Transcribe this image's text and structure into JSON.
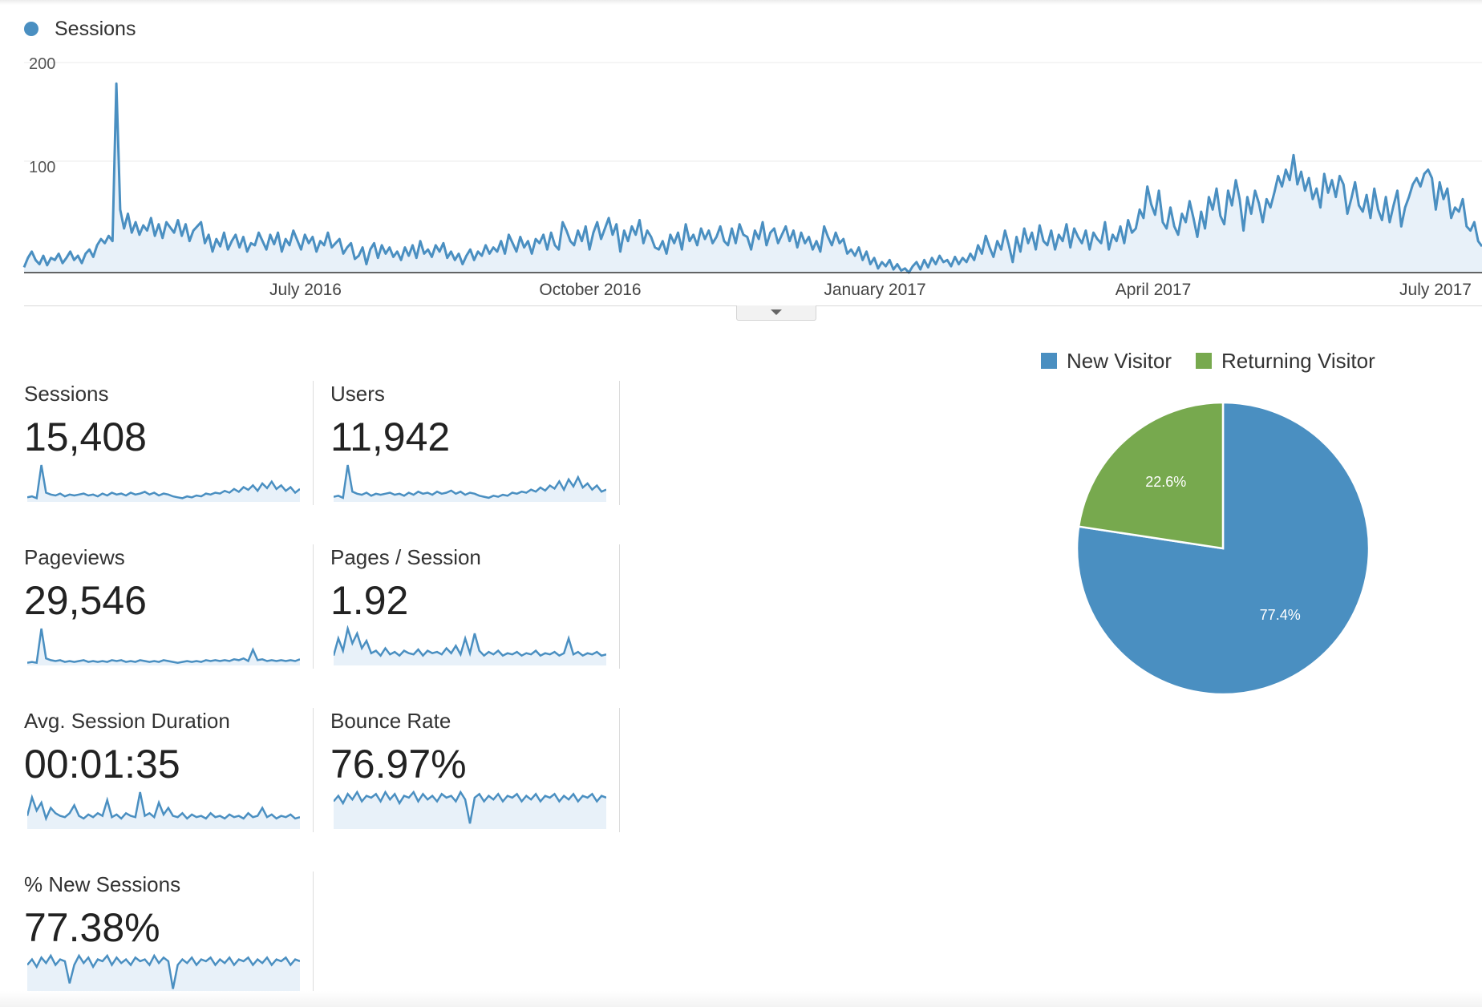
{
  "colors": {
    "sessions": "#4a8fc1",
    "new_visitor": "#4a8fc1",
    "returning_visitor": "#77a94e",
    "area_fill": "#e8f1f9"
  },
  "chart_data": [
    {
      "type": "line",
      "legend": "Sessions",
      "ylim": [
        0,
        200
      ],
      "y_ticks": [
        "200",
        "100"
      ],
      "x_tick_labels": [
        "July 2016",
        "October 2016",
        "January 2017",
        "April 2017",
        "July 2017"
      ],
      "series": [
        {
          "name": "Sessions",
          "values": [
            5,
            14,
            20,
            12,
            8,
            16,
            7,
            14,
            12,
            18,
            9,
            14,
            20,
            12,
            16,
            9,
            18,
            22,
            15,
            26,
            32,
            28,
            35,
            30,
            180,
            60,
            42,
            56,
            38,
            48,
            36,
            45,
            40,
            52,
            35,
            46,
            33,
            48,
            43,
            38,
            50,
            35,
            46,
            30,
            40,
            44,
            48,
            28,
            36,
            20,
            32,
            25,
            38,
            22,
            30,
            36,
            24,
            34,
            20,
            28,
            26,
            38,
            30,
            22,
            36,
            27,
            38,
            20,
            32,
            26,
            40,
            31,
            22,
            36,
            28,
            34,
            20,
            30,
            26,
            38,
            24,
            28,
            32,
            18,
            24,
            28,
            13,
            16,
            24,
            8,
            22,
            28,
            14,
            26,
            18,
            24,
            15,
            20,
            12,
            24,
            16,
            26,
            14,
            30,
            18,
            22,
            15,
            26,
            20,
            28,
            14,
            20,
            12,
            18,
            8,
            16,
            22,
            12,
            20,
            16,
            26,
            18,
            24,
            20,
            30,
            18,
            36,
            28,
            20,
            34,
            24,
            30,
            18,
            32,
            28,
            36,
            22,
            38,
            26,
            22,
            48,
            40,
            30,
            26,
            40,
            30,
            44,
            22,
            38,
            48,
            32,
            42,
            52,
            36,
            46,
            20,
            40,
            30,
            44,
            36,
            50,
            28,
            40,
            34,
            24,
            22,
            30,
            18,
            36,
            28,
            38,
            22,
            46,
            30,
            36,
            26,
            42,
            32,
            40,
            28,
            34,
            44,
            30,
            26,
            42,
            28,
            46,
            36,
            34,
            22,
            40,
            32,
            48,
            26,
            38,
            42,
            28,
            36,
            44,
            30,
            40,
            24,
            38,
            28,
            34,
            22,
            30,
            20,
            44,
            34,
            26,
            38,
            28,
            32,
            18,
            22,
            16,
            24,
            12,
            20,
            8,
            14,
            4,
            10,
            6,
            12,
            3,
            8,
            2,
            4,
            0,
            6,
            10,
            3,
            12,
            5,
            14,
            8,
            16,
            10,
            12,
            6,
            15,
            8,
            14,
            10,
            18,
            12,
            26,
            18,
            35,
            24,
            15,
            30,
            22,
            40,
            26,
            10,
            34,
            20,
            42,
            28,
            38,
            22,
            45,
            30,
            26,
            40,
            22,
            36,
            30,
            46,
            24,
            42,
            34,
            28,
            40,
            22,
            38,
            32,
            28,
            48,
            22,
            36,
            30,
            44,
            28,
            50,
            38,
            42,
            60,
            52,
            82,
            65,
            55,
            78,
            48,
            42,
            62,
            44,
            36,
            56,
            48,
            68,
            52,
            34,
            58,
            42,
            72,
            60,
            80,
            54,
            46,
            78,
            64,
            88,
            70,
            40,
            72,
            56,
            78,
            66,
            48,
            70,
            62,
            76,
            92,
            82,
            98,
            88,
            112,
            84,
            96,
            78,
            90,
            70,
            80,
            62,
            94,
            76,
            88,
            72,
            92,
            84,
            56,
            70,
            86,
            64,
            58,
            74,
            52,
            80,
            60,
            50,
            72,
            48,
            64,
            78,
            44,
            62,
            72,
            84,
            90,
            82,
            94,
            98,
            90,
            60,
            86,
            70,
            80,
            52,
            62,
            58,
            70,
            44,
            40,
            48,
            30,
            25
          ]
        }
      ]
    },
    {
      "type": "pie",
      "legend_entries": [
        "New Visitor",
        "Returning Visitor"
      ],
      "slices": [
        {
          "name": "New Visitor",
          "value": 77.4,
          "label": "77.4%"
        },
        {
          "name": "Returning Visitor",
          "value": 22.6,
          "label": "22.6%"
        }
      ]
    }
  ],
  "metrics": [
    {
      "label": "Sessions",
      "value": "15,408",
      "spark": [
        5,
        6,
        4,
        40,
        10,
        8,
        7,
        9,
        6,
        8,
        7,
        8,
        9,
        7,
        8,
        6,
        9,
        7,
        10,
        8,
        9,
        7,
        10,
        8,
        9,
        11,
        8,
        10,
        7,
        9,
        8,
        6,
        5,
        4,
        6,
        5,
        7,
        6,
        9,
        8,
        10,
        9,
        12,
        10,
        14,
        11,
        16,
        13,
        18,
        12,
        20,
        15,
        22,
        14,
        18,
        12,
        16,
        10,
        14
      ]
    },
    {
      "label": "Users",
      "value": "11,942",
      "spark": [
        5,
        6,
        4,
        36,
        10,
        8,
        7,
        9,
        6,
        8,
        7,
        8,
        9,
        7,
        8,
        6,
        9,
        7,
        10,
        8,
        9,
        7,
        10,
        8,
        9,
        11,
        8,
        10,
        7,
        9,
        8,
        6,
        5,
        4,
        6,
        5,
        7,
        6,
        9,
        8,
        10,
        9,
        12,
        10,
        14,
        11,
        16,
        13,
        20,
        12,
        22,
        15,
        24,
        14,
        18,
        12,
        16,
        10,
        12
      ]
    },
    {
      "label": "Pageviews",
      "value": "29,546",
      "spark": [
        3,
        4,
        3,
        42,
        8,
        6,
        5,
        6,
        4,
        5,
        4,
        5,
        6,
        4,
        5,
        4,
        5,
        4,
        6,
        5,
        6,
        4,
        5,
        4,
        6,
        5,
        4,
        5,
        4,
        6,
        5,
        4,
        3,
        4,
        5,
        4,
        5,
        4,
        6,
        5,
        6,
        5,
        6,
        5,
        7,
        6,
        8,
        5,
        18,
        6,
        7,
        5,
        6,
        5,
        6,
        5,
        6,
        5,
        7
      ]
    },
    {
      "label": "Pages / Session",
      "value": "1.92",
      "spark": [
        8,
        22,
        12,
        30,
        18,
        26,
        14,
        20,
        10,
        12,
        8,
        14,
        9,
        11,
        8,
        12,
        10,
        9,
        13,
        8,
        12,
        10,
        11,
        9,
        14,
        10,
        16,
        9,
        22,
        10,
        26,
        12,
        8,
        11,
        9,
        12,
        8,
        10,
        9,
        11,
        8,
        10,
        9,
        12,
        8,
        10,
        9,
        11,
        8,
        10,
        22,
        9,
        11,
        8,
        10,
        9,
        11,
        8,
        9
      ]
    },
    {
      "label": "Avg. Session Duration",
      "value": "00:01:35",
      "spark": [
        10,
        24,
        14,
        20,
        8,
        16,
        12,
        10,
        9,
        12,
        18,
        10,
        8,
        11,
        9,
        12,
        10,
        22,
        9,
        11,
        8,
        12,
        10,
        9,
        28,
        10,
        12,
        9,
        20,
        11,
        16,
        10,
        9,
        12,
        8,
        11,
        9,
        10,
        8,
        12,
        9,
        10,
        8,
        11,
        9,
        10,
        8,
        12,
        9,
        10,
        16,
        9,
        11,
        8,
        10,
        9,
        11,
        8,
        9
      ]
    },
    {
      "label": "Bounce Rate",
      "value": "76.97%",
      "spark": [
        30,
        36,
        28,
        38,
        32,
        40,
        30,
        36,
        34,
        38,
        30,
        40,
        32,
        38,
        28,
        36,
        34,
        40,
        30,
        38,
        32,
        36,
        30,
        38,
        34,
        36,
        30,
        40,
        32,
        6,
        34,
        38,
        30,
        36,
        32,
        38,
        30,
        36,
        34,
        38,
        30,
        36,
        32,
        38,
        30,
        36,
        34,
        38,
        30,
        36,
        32,
        38,
        30,
        36,
        34,
        38,
        30,
        36,
        34
      ]
    },
    {
      "label": "% New Sessions",
      "value": "77.38%",
      "spark": [
        30,
        36,
        28,
        38,
        32,
        40,
        30,
        36,
        34,
        10,
        30,
        40,
        32,
        38,
        28,
        36,
        34,
        40,
        30,
        38,
        32,
        36,
        30,
        38,
        34,
        36,
        30,
        40,
        32,
        38,
        34,
        4,
        30,
        36,
        32,
        38,
        30,
        36,
        34,
        38,
        30,
        36,
        32,
        38,
        30,
        36,
        34,
        38,
        30,
        36,
        32,
        38,
        30,
        36,
        34,
        38,
        30,
        36,
        34
      ]
    }
  ]
}
